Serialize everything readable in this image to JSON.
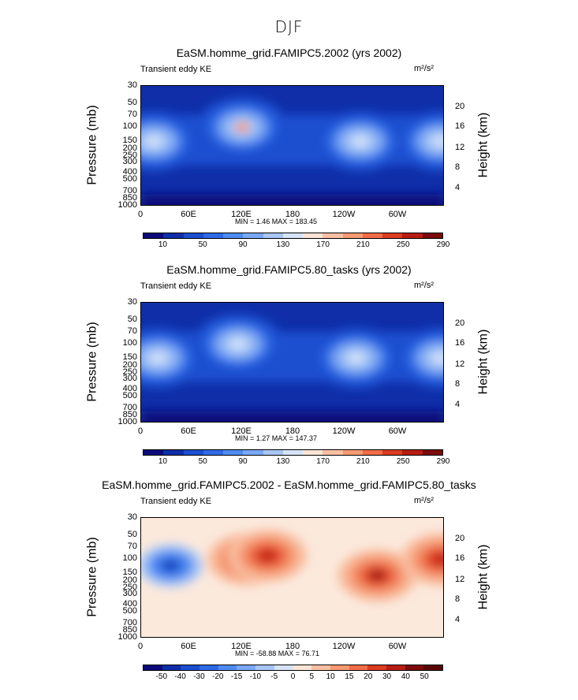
{
  "figure_title": "DJF",
  "chart_data": [
    {
      "type": "heatmap",
      "title": "EaSM.homme_grid.FAMIPC5.2002 (yrs 2002)",
      "subtitle_left": "Transient eddy KE",
      "units": "m²/s²",
      "ylabel": "Pressure (mb)",
      "ylabel_right": "Height (km)",
      "x_ticks": [
        "0",
        "60E",
        "120E",
        "180",
        "120W",
        "60W"
      ],
      "pressure_ticks": [
        "30",
        "50",
        "70",
        "100",
        "150",
        "200",
        "250",
        "300",
        "400",
        "500",
        "700",
        "850",
        "1000"
      ],
      "height_ticks": [
        "20",
        "16",
        "12",
        "8",
        "4"
      ],
      "stats": "MIN =    1.46  MAX = 183.45",
      "colorbar_labels": [
        "10",
        "50",
        "90",
        "130",
        "170",
        "210",
        "250",
        "290"
      ],
      "colorbar_colors": [
        "#0a0a7a",
        "#0f2ea8",
        "#1c4fd0",
        "#2f6ae6",
        "#4f8bf0",
        "#7aa8f4",
        "#a8c6f6",
        "#d6e4fa",
        "#fce4d6",
        "#f9c0a3",
        "#f59a72",
        "#ef6d48",
        "#dc3c22",
        "#b81d12",
        "#7c0a0a"
      ],
      "hotspots": [
        {
          "lon": 120,
          "p": 100,
          "value": 183
        },
        {
          "lon": 260,
          "p": 150,
          "value": 110
        },
        {
          "lon": 15,
          "p": 150,
          "value": 95
        },
        {
          "lon": 355,
          "p": 150,
          "value": 100
        }
      ]
    },
    {
      "type": "heatmap",
      "title": "EaSM.homme_grid.FAMIPC5.80_tasks (yrs 2002)",
      "subtitle_left": "Transient eddy KE",
      "units": "m²/s²",
      "ylabel": "Pressure (mb)",
      "ylabel_right": "Height (km)",
      "x_ticks": [
        "0",
        "60E",
        "120E",
        "180",
        "120W",
        "60W"
      ],
      "pressure_ticks": [
        "30",
        "50",
        "70",
        "100",
        "150",
        "200",
        "250",
        "300",
        "400",
        "500",
        "700",
        "850",
        "1000"
      ],
      "height_ticks": [
        "20",
        "16",
        "12",
        "8",
        "4"
      ],
      "stats": "MIN =    1.27  MAX = 147.37",
      "colorbar_labels": [
        "10",
        "50",
        "90",
        "130",
        "170",
        "210",
        "250",
        "290"
      ],
      "colorbar_colors": [
        "#0a0a7a",
        "#0f2ea8",
        "#1c4fd0",
        "#2f6ae6",
        "#4f8bf0",
        "#7aa8f4",
        "#a8c6f6",
        "#d6e4fa",
        "#fce4d6",
        "#f9c0a3",
        "#f59a72",
        "#ef6d48",
        "#dc3c22",
        "#b81d12",
        "#7c0a0a"
      ],
      "hotspots": [
        {
          "lon": 115,
          "p": 100,
          "value": 130
        },
        {
          "lon": 255,
          "p": 150,
          "value": 110
        },
        {
          "lon": 20,
          "p": 150,
          "value": 105
        },
        {
          "lon": 355,
          "p": 150,
          "value": 100
        }
      ]
    },
    {
      "type": "heatmap",
      "title": "EaSM.homme_grid.FAMIPC5.2002 - EaSM.homme_grid.FAMIPC5.80_tasks",
      "subtitle_left": "Transient eddy KE",
      "units": "m²/s²",
      "ylabel": "Pressure (mb)",
      "ylabel_right": "Height (km)",
      "x_ticks": [
        "0",
        "60E",
        "120E",
        "180",
        "120W",
        "60W"
      ],
      "pressure_ticks": [
        "30",
        "50",
        "70",
        "100",
        "150",
        "200",
        "250",
        "300",
        "400",
        "500",
        "700",
        "850",
        "1000"
      ],
      "height_ticks": [
        "20",
        "16",
        "12",
        "8",
        "4"
      ],
      "stats": "MIN = -58.88  MAX =  76.71",
      "colorbar_labels": [
        "-50",
        "-40",
        "-30",
        "-20",
        "-15",
        "-10",
        "-5",
        "0",
        "5",
        "10",
        "15",
        "20",
        "30",
        "40",
        "50"
      ],
      "colorbar_colors": [
        "#0a0a7a",
        "#0f2ea8",
        "#1c4fd0",
        "#2f6ae6",
        "#4f8bf0",
        "#7aa8f4",
        "#a8c6f6",
        "#d6e4fa",
        "#fce4d6",
        "#f9c0a3",
        "#f59a72",
        "#ef6d48",
        "#dc3c22",
        "#b81d12",
        "#7c0a0a",
        "#5a0505"
      ],
      "hotspots": [
        {
          "lon": 35,
          "p": 120,
          "value": -55
        },
        {
          "lon": 125,
          "p": 100,
          "value": 60
        },
        {
          "lon": 150,
          "p": 90,
          "value": 50
        },
        {
          "lon": 280,
          "p": 160,
          "value": 75
        },
        {
          "lon": 355,
          "p": 100,
          "value": 35
        }
      ]
    }
  ]
}
